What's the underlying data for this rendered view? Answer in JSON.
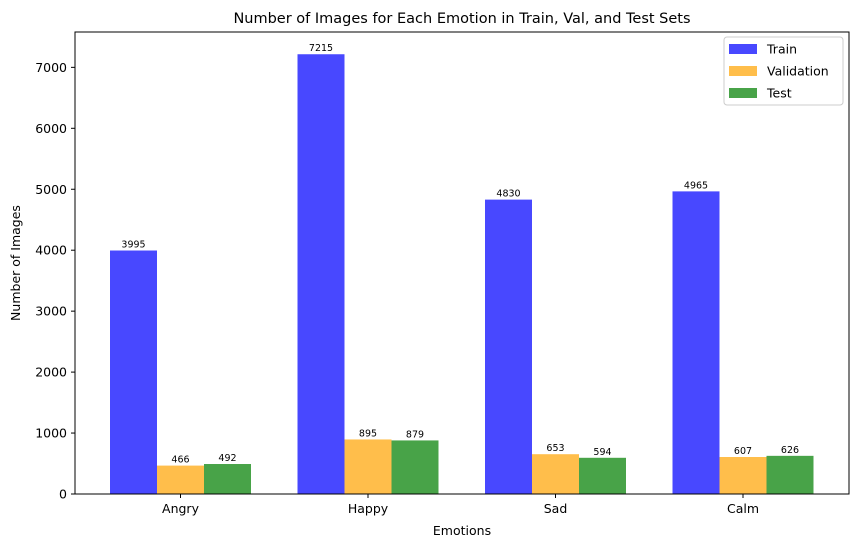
{
  "chart_data": {
    "type": "bar",
    "title": "Number of Images for Each Emotion in Train, Val, and Test Sets",
    "xlabel": "Emotions",
    "ylabel": "Number of Images",
    "categories": [
      "Angry",
      "Happy",
      "Sad",
      "Calm"
    ],
    "series": [
      {
        "name": "Train",
        "color": "#4848ff",
        "values": [
          3995,
          7215,
          4830,
          4965
        ]
      },
      {
        "name": "Validation",
        "color": "#ffbe4b",
        "values": [
          466,
          895,
          653,
          607
        ]
      },
      {
        "name": "Test",
        "color": "#48a348",
        "values": [
          492,
          879,
          594,
          626
        ]
      }
    ],
    "ylim": [
      0,
      7580
    ],
    "yticks": [
      0,
      1000,
      2000,
      3000,
      4000,
      5000,
      6000,
      7000
    ],
    "grid": false,
    "legend_position": "top-right",
    "data_labels": true
  }
}
